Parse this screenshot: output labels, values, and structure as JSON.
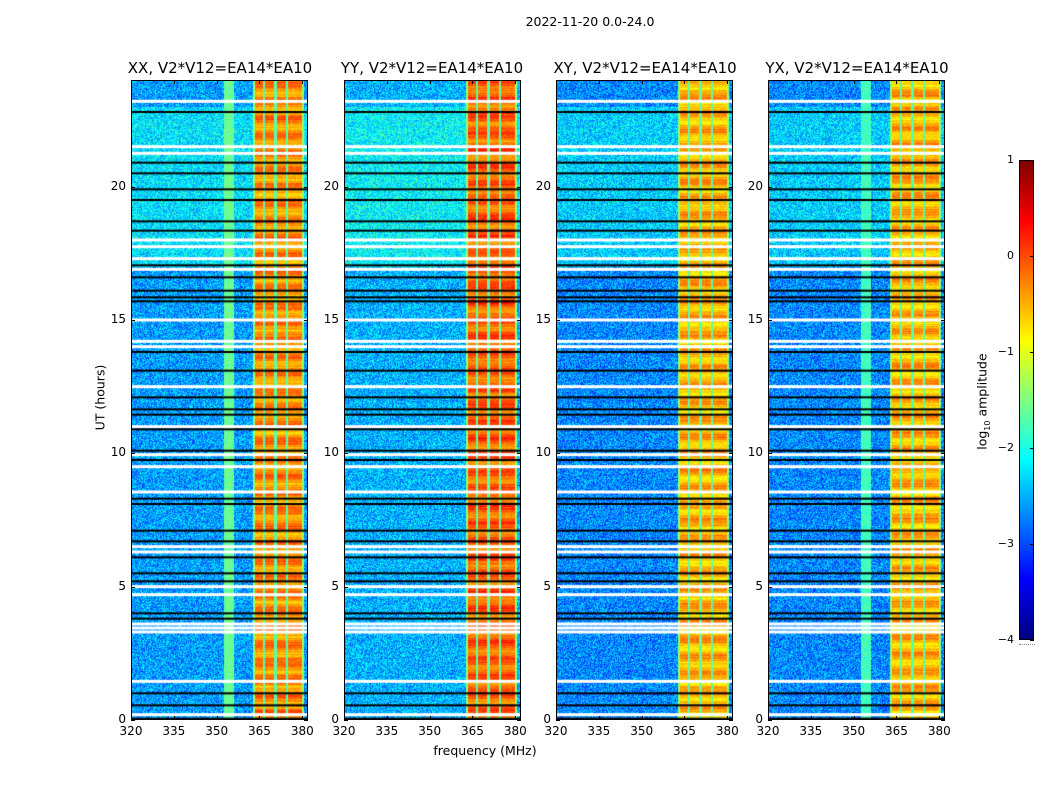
{
  "figure": {
    "suptitle": "2022-11-20 0.0-24.0",
    "xlabel": "frequency (MHz)",
    "ylabel": "UT (hours)"
  },
  "colorbar": {
    "label_prefix": "log",
    "label_sub": "10",
    "label_suffix": " amplitude",
    "range": [
      -4,
      1
    ],
    "ticks": [
      "1",
      "0",
      "−1",
      "−2",
      "−3",
      "−4"
    ],
    "tick_values": [
      1,
      0,
      -1,
      -2,
      -3,
      -4
    ],
    "colormap": "jet"
  },
  "chart_data": {
    "type": "heatmap",
    "title": "2022-11-20 0.0-24.0",
    "xlabel": "frequency (MHz)",
    "ylabel": "UT (hours)",
    "xlim": [
      320,
      382
    ],
    "ylim": [
      0,
      24
    ],
    "xticks": [
      320,
      335,
      350,
      365,
      380
    ],
    "xtick_labels": [
      "320",
      "335",
      "350",
      "365",
      "380"
    ],
    "yticks": [
      0,
      5,
      10,
      15,
      20
    ],
    "ytick_labels": [
      "0",
      "5",
      "10",
      "15",
      "20"
    ],
    "zlabel": "log10 amplitude",
    "zlim": [
      -4,
      1
    ],
    "panels": [
      {
        "title": "XX, V2*V12=EA14*EA10",
        "background_level": -2.6,
        "band_level": -0.3,
        "edge_band_level": -1.6,
        "edge_band_visible": true
      },
      {
        "title": "YY, V2*V12=EA14*EA10",
        "background_level": -2.5,
        "band_level": -0.1,
        "edge_band_level": -2.6,
        "edge_band_visible": false
      },
      {
        "title": "XY, V2*V12=EA14*EA10",
        "background_level": -2.7,
        "band_level": -0.5,
        "edge_band_level": -2.7,
        "edge_band_visible": false
      },
      {
        "title": "YX, V2*V12=EA14*EA10",
        "background_level": -2.7,
        "band_level": -0.5,
        "edge_band_level": -1.8,
        "edge_band_visible": true
      }
    ],
    "rfi_band_mhz": [
      362.5,
      380.5
    ],
    "rfi_subband_gaps_mhz": [
      366.5,
      370.5,
      374.5
    ],
    "edge_band_mhz": [
      352.5,
      356
    ],
    "flagged_rows_white_hours": [
      23.2,
      21.5,
      21.25,
      18.0,
      17.75,
      17.3,
      16.9,
      15.0,
      14.2,
      14.0,
      12.5,
      11.0,
      9.95,
      9.5,
      8.55,
      6.5,
      6.3,
      5.0,
      4.7,
      3.6,
      3.45,
      3.3,
      1.45,
      0.2
    ],
    "flagged_rows_black_hours": [
      22.8,
      20.9,
      20.5,
      19.9,
      19.5,
      18.7,
      18.35,
      17.05,
      16.6,
      16.1,
      15.85,
      15.7,
      13.8,
      13.1,
      12.1,
      11.65,
      11.45,
      10.9,
      10.1,
      9.75,
      8.3,
      8.1,
      7.1,
      6.7,
      6.1,
      5.5,
      5.2,
      4.0,
      3.8,
      1.0,
      0.55,
      0.05
    ]
  }
}
